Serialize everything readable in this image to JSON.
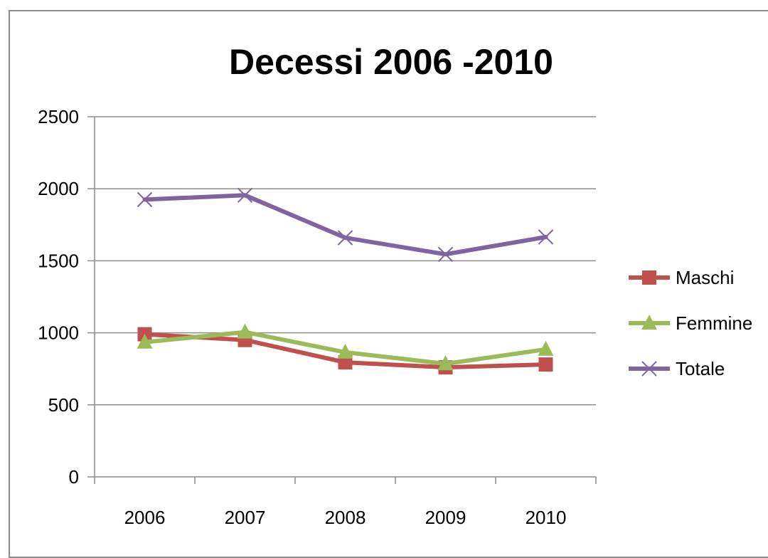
{
  "chart_data": {
    "type": "line",
    "title": "Decessi 2006 -2010",
    "xlabel": "",
    "ylabel": "",
    "categories": [
      "2006",
      "2007",
      "2008",
      "2009",
      "2010"
    ],
    "ylim": [
      0,
      2500
    ],
    "yticks": [
      0,
      500,
      1000,
      1500,
      2000,
      2500
    ],
    "grid": true,
    "legend_position": "right",
    "series": [
      {
        "name": "Maschi",
        "values": [
          990,
          950,
          795,
          760,
          780
        ],
        "color": "#c0504d",
        "marker": "square"
      },
      {
        "name": "Femmine",
        "values": [
          935,
          1005,
          865,
          785,
          885
        ],
        "color": "#9bbb59",
        "marker": "triangle"
      },
      {
        "name": "Totale",
        "values": [
          1925,
          1955,
          1660,
          1545,
          1665
        ],
        "color": "#8064a2",
        "marker": "x"
      }
    ]
  }
}
